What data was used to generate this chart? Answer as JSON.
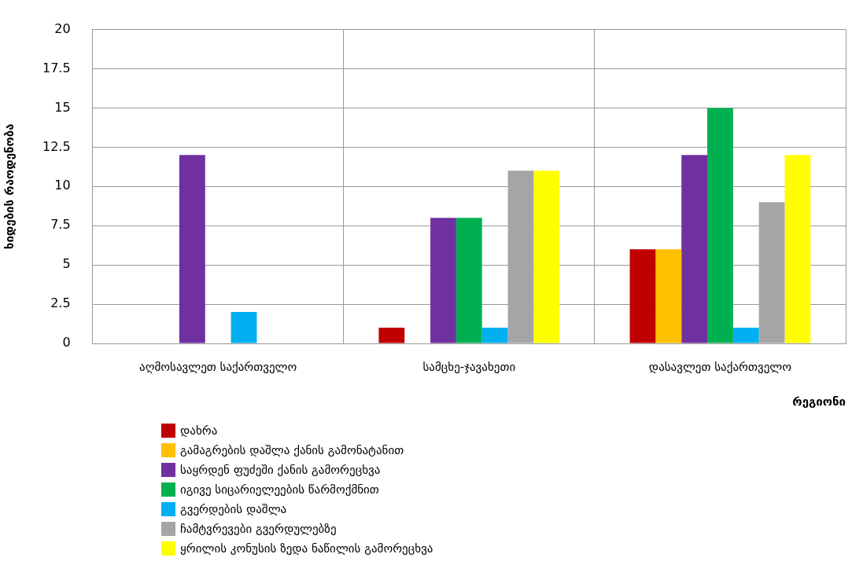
{
  "chart_data": {
    "type": "bar",
    "ylabel": "ხიდების რაოდენობა",
    "xlabel": "რეგიონი",
    "categories": [
      "აღმოსავლეთ საქართველო",
      "სამცხე-ჯავახეთი",
      "დასავლეთ საქართველო"
    ],
    "series": [
      {
        "name": "დახრა",
        "color": "#c00000",
        "values": [
          0,
          1,
          6
        ]
      },
      {
        "name": "გამაგრების დაშლა ქანის გამონატანით",
        "color": "#ffc000",
        "values": [
          0,
          0,
          6
        ]
      },
      {
        "name": "საყრდენ ფუძეში ქანის გამორეცხვა",
        "color": "#7030a0",
        "values": [
          12,
          8,
          12
        ]
      },
      {
        "name": "იგივე სიცარიელეების წარმოქმნით",
        "color": "#00b050",
        "values": [
          0,
          8,
          15
        ]
      },
      {
        "name": "გვერდების დაშლა",
        "color": "#00b0f0",
        "values": [
          2,
          1,
          1
        ]
      },
      {
        "name": "ჩამტვრევები გვერდულებზე",
        "color": "#a5a5a5",
        "values": [
          0,
          11,
          9
        ]
      },
      {
        "name": "ყრილის კონუსის ზედა ნაწილის გამორეცხვა",
        "color": "#ffff00",
        "values": [
          0,
          11,
          12
        ]
      }
    ],
    "ylim": [
      0,
      20
    ],
    "yticks": [
      0,
      2.5,
      5,
      7.5,
      10,
      12.5,
      15,
      17.5,
      20
    ],
    "grid": true,
    "legend": "bottom"
  }
}
